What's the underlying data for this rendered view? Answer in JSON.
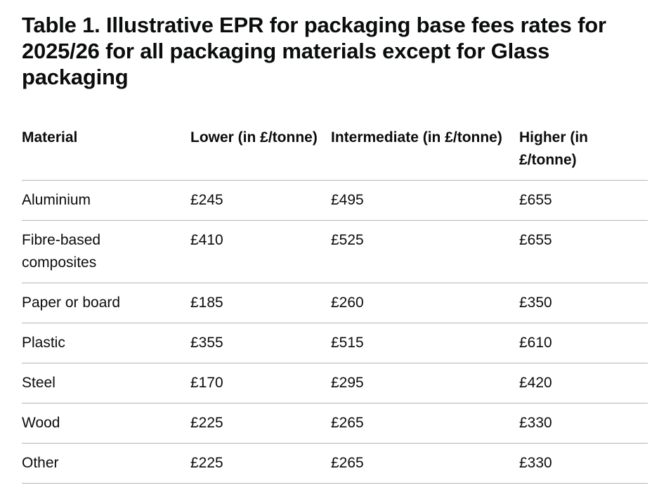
{
  "title": "Table 1. Illustrative EPR for packaging base fees rates for 2025/26 for all packaging materials except for Glass packaging",
  "columns": [
    "Material",
    "Lower (in £/tonne)",
    "Intermediate (in £/tonne)",
    "Higher  (in £/tonne)"
  ],
  "rows": [
    [
      "Aluminium",
      "£245",
      "£495",
      "£655"
    ],
    [
      "Fibre-based composites",
      "£410",
      "£525",
      "£655"
    ],
    [
      "Paper or board",
      "£185",
      "£260",
      "£350"
    ],
    [
      "Plastic",
      "£355",
      "£515",
      "£610"
    ],
    [
      "Steel",
      "£170",
      "£295",
      "£420"
    ],
    [
      "Wood",
      "£225",
      "£265",
      "£330"
    ],
    [
      "Other",
      "£225",
      "£265",
      "£330"
    ]
  ]
}
